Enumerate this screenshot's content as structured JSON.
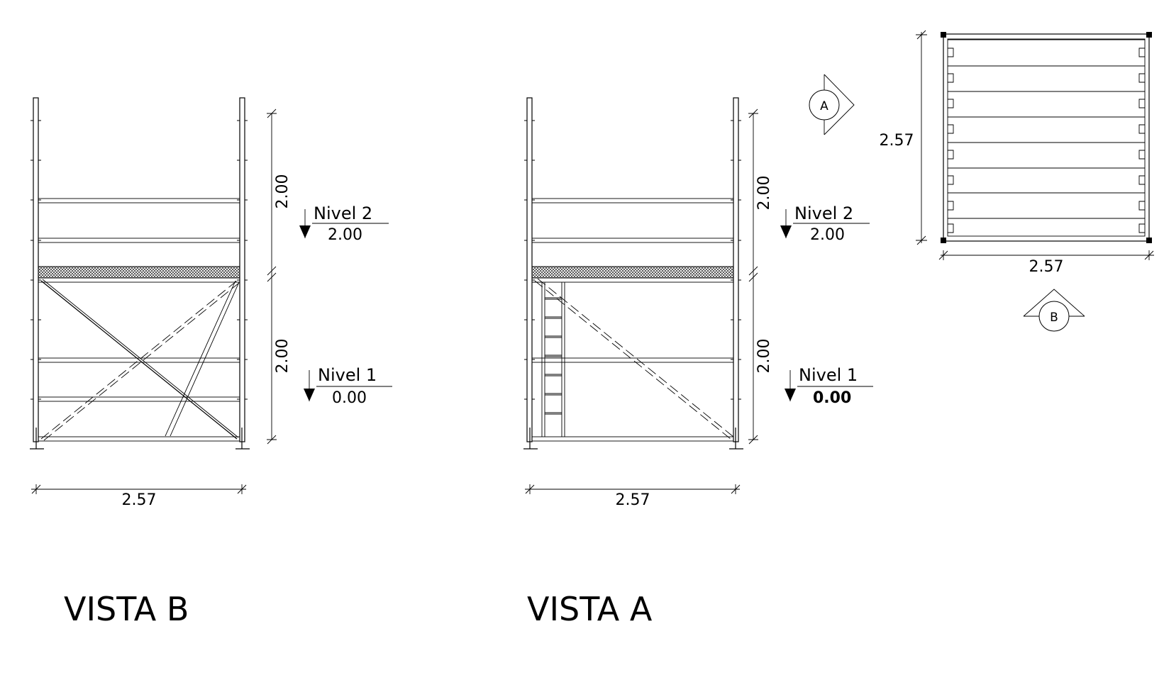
{
  "views": {
    "vista_b": {
      "title": "VISTA B",
      "width_dim": "2.57",
      "height_upper": "2.00",
      "height_lower": "2.00",
      "level_2": {
        "name": "Nivel 2",
        "value": "2.00"
      },
      "level_1": {
        "name": "Nivel 1",
        "value": "0.00"
      }
    },
    "vista_a": {
      "title": "VISTA A",
      "width_dim": "2.57",
      "height_upper": "2.00",
      "height_lower": "2.00",
      "level_2": {
        "name": "Nivel 2",
        "value": "2.00"
      },
      "level_1": {
        "name": "Nivel 1",
        "value": "0.00"
      }
    },
    "plan": {
      "width_dim": "2.57",
      "depth_dim": "2.57",
      "marker_a": "A",
      "marker_b": "B"
    }
  },
  "colors": {
    "line": "#000000",
    "background": "#ffffff"
  }
}
